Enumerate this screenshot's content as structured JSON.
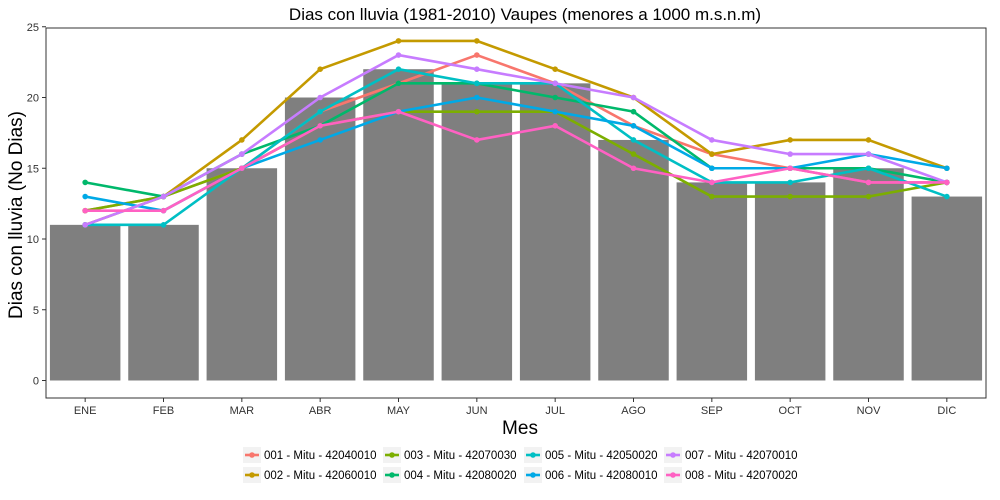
{
  "chart_data": {
    "type": "bar",
    "title": "Dias con lluvia (1981-2010) Vaupes (menores a 1000 m.s.n.m)",
    "xlabel": "Mes",
    "ylabel": "Dias con lluvia (No Dias)",
    "ylim": [
      0,
      25
    ],
    "yticks": [
      0,
      5,
      10,
      15,
      20,
      25
    ],
    "grid": false,
    "legend_position": "bottom",
    "categories": [
      "ENE",
      "FEB",
      "MAR",
      "ABR",
      "MAY",
      "JUN",
      "JUL",
      "AGO",
      "SEP",
      "OCT",
      "NOV",
      "DIC"
    ],
    "bar_color": "#7f7f7f",
    "bars": [
      11,
      11,
      15,
      20,
      22,
      21,
      21,
      17,
      14,
      14,
      15,
      13
    ],
    "series": [
      {
        "name": "001 - Mitu - 42040010",
        "color": "#F8766D",
        "values": [
          12,
          13,
          15,
          19,
          21,
          23,
          21,
          18,
          16,
          15,
          14,
          14
        ]
      },
      {
        "name": "002 - Mitu - 42060010",
        "color": "#C49A00",
        "values": [
          11,
          13,
          17,
          22,
          24,
          24,
          22,
          20,
          16,
          17,
          17,
          15
        ]
      },
      {
        "name": "003 - Mitu - 42070030",
        "color": "#7CAE00",
        "values": [
          12,
          13,
          15,
          18,
          19,
          19,
          19,
          16,
          13,
          13,
          13,
          14
        ]
      },
      {
        "name": "004 - Mitu - 42080020",
        "color": "#00B86B",
        "values": [
          14,
          13,
          16,
          18,
          21,
          21,
          20,
          19,
          15,
          15,
          15,
          14
        ]
      },
      {
        "name": "005 - Mitu - 42050020",
        "color": "#00BFC4",
        "values": [
          11,
          11,
          15,
          19,
          22,
          21,
          21,
          17,
          14,
          14,
          15,
          13
        ]
      },
      {
        "name": "006 - Mitu - 42080010",
        "color": "#00A9E6",
        "values": [
          13,
          12,
          15,
          17,
          19,
          20,
          19,
          18,
          15,
          15,
          16,
          15
        ]
      },
      {
        "name": "007 - Mitu - 42070010",
        "color": "#C77CFF",
        "values": [
          11,
          13,
          16,
          20,
          23,
          22,
          21,
          20,
          17,
          16,
          16,
          14
        ]
      },
      {
        "name": "008 - Mitu - 42070020",
        "color": "#FF61C3",
        "values": [
          12,
          12,
          15,
          18,
          19,
          17,
          18,
          15,
          14,
          15,
          14,
          14
        ]
      }
    ]
  }
}
